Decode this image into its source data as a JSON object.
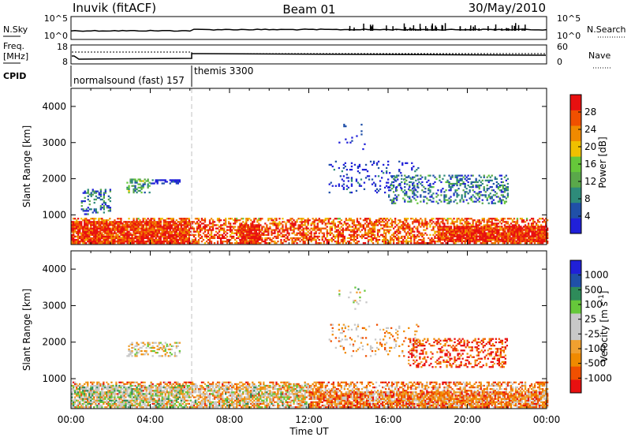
{
  "header": {
    "station": "Inuvik (fitACF)",
    "beam": "Beam 01",
    "date": "30/May/2010"
  },
  "nsky_panel": {
    "left_label": "N.Sky",
    "right_label": "N.Search",
    "left_ticks": [
      "10^5",
      "10^0"
    ],
    "right_ticks": [
      "10^5",
      "10^0"
    ]
  },
  "freq_panel": {
    "left_label_1": "Freq.",
    "left_label_2": "[MHz]",
    "right_label": "Nave",
    "left_ticks": [
      "18",
      "8"
    ],
    "right_ticks": [
      "60",
      "0"
    ]
  },
  "cpid": {
    "label": "CPID",
    "segments": [
      {
        "name": "normalsound (fast) 157",
        "start_hour": 0,
        "end_hour": 6
      },
      {
        "name": "themis 3300",
        "start_hour": 6,
        "end_hour": 24
      }
    ]
  },
  "time_axis": {
    "label": "Time UT",
    "ticks": [
      "00:00",
      "04:00",
      "08:00",
      "12:00",
      "16:00",
      "20:00",
      "00:00"
    ]
  },
  "chart_data": [
    {
      "type": "heatmap",
      "quantity": "Power",
      "ylabel": "Slant Range [km]",
      "colorbar_label": "Power [dB]",
      "xlim": [
        0,
        24
      ],
      "ylim": [
        180,
        4500
      ],
      "yticks": [
        1000,
        2000,
        3000,
        4000
      ],
      "colorbar_ticks": [
        "28",
        "24",
        "20",
        "16",
        "12",
        "8",
        "4"
      ],
      "colors": [
        "#2020d8",
        "#2050a8",
        "#2e8b7a",
        "#5aa84a",
        "#66c83a",
        "#f0c000",
        "#f08a00",
        "#f05000",
        "#e81010"
      ],
      "regions": [
        {
          "t": [
            0,
            24
          ],
          "r": [
            200,
            900
          ],
          "level": 0.85,
          "fill": 0.55
        },
        {
          "t": [
            0,
            6
          ],
          "r": [
            200,
            800
          ],
          "level": 0.9,
          "fill": 0.8
        },
        {
          "t": [
            8.5,
            9.5
          ],
          "r": [
            200,
            700
          ],
          "level": 0.95,
          "fill": 0.9
        },
        {
          "t": [
            18.5,
            24
          ],
          "r": [
            250,
            700
          ],
          "level": 0.92,
          "fill": 0.85
        },
        {
          "t": [
            0.5,
            2.0
          ],
          "r": [
            1000,
            1700
          ],
          "level": 0.3,
          "fill": 0.3
        },
        {
          "t": [
            2.8,
            4.0
          ],
          "r": [
            1600,
            2000
          ],
          "level": 0.45,
          "fill": 0.45
        },
        {
          "t": [
            4.0,
            5.5
          ],
          "r": [
            1850,
            1950
          ],
          "level": 0.1,
          "fill": 0.6
        },
        {
          "t": [
            13,
            17.5
          ],
          "r": [
            1600,
            2500
          ],
          "level": 0.15,
          "fill": 0.12
        },
        {
          "t": [
            16,
            22
          ],
          "r": [
            1300,
            2100
          ],
          "level": 0.35,
          "fill": 0.3
        },
        {
          "t": [
            13.5,
            15
          ],
          "r": [
            2800,
            3500
          ],
          "level": 0.1,
          "fill": 0.06
        }
      ]
    },
    {
      "type": "heatmap",
      "quantity": "Velocity",
      "ylabel": "Slant Range [km]",
      "colorbar_label": "Velocity [m s-1]",
      "xlim": [
        0,
        24
      ],
      "ylim": [
        180,
        4500
      ],
      "yticks": [
        1000,
        2000,
        3000,
        4000
      ],
      "colorbar_ticks": [
        "1000",
        "500",
        "100",
        "25",
        "-25",
        "-100",
        "-500",
        "-1000"
      ],
      "colors": [
        "#e81010",
        "#f05000",
        "#f08a00",
        "#f0a030",
        "#c8c8c8",
        "#c8c8c8",
        "#66c83a",
        "#2e8b5a",
        "#2050a8",
        "#2020d8"
      ],
      "regions": [
        {
          "t": [
            0,
            24
          ],
          "r": [
            200,
            900
          ],
          "level": 0.3,
          "fill": 0.5
        },
        {
          "t": [
            0,
            6
          ],
          "r": [
            200,
            800
          ],
          "level": 0.55,
          "fill": 0.6
        },
        {
          "t": [
            6,
            12
          ],
          "r": [
            200,
            800
          ],
          "level": 0.5,
          "fill": 0.45
        },
        {
          "t": [
            12,
            24
          ],
          "r": [
            200,
            650
          ],
          "level": 0.25,
          "fill": 0.7
        },
        {
          "t": [
            2.8,
            5.5
          ],
          "r": [
            1600,
            2000
          ],
          "level": 0.55,
          "fill": 0.35
        },
        {
          "t": [
            13,
            17.5
          ],
          "r": [
            1600,
            2500
          ],
          "level": 0.45,
          "fill": 0.12
        },
        {
          "t": [
            17,
            22
          ],
          "r": [
            1300,
            2100
          ],
          "level": 0.2,
          "fill": 0.35
        },
        {
          "t": [
            13.5,
            15
          ],
          "r": [
            2800,
            3500
          ],
          "level": 0.6,
          "fill": 0.05
        }
      ]
    }
  ]
}
